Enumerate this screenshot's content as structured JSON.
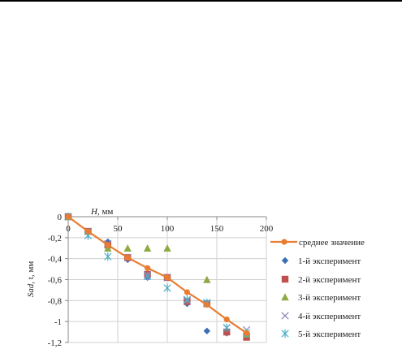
{
  "chart_data": {
    "type": "scatter",
    "xlabel_italic": "H",
    "xlabel_rest": ", мм",
    "ylabel_italic": "Sad",
    "ylabel_rest": ", t, мм",
    "xlim": [
      0,
      200
    ],
    "ylim": [
      -1.2,
      0
    ],
    "x_ticks": [
      0,
      50,
      100,
      150,
      200
    ],
    "x_tick_labels": [
      "0",
      "50",
      "100",
      "150",
      "200"
    ],
    "y_ticks": [
      0,
      -0.2,
      -0.4,
      -0.6,
      -0.8,
      -1,
      -1.2
    ],
    "y_tick_labels": [
      "0",
      "-0,2",
      "-0,4",
      "-0,6",
      "-0,8",
      "-1",
      "-1,2"
    ],
    "grid": true,
    "legend_position": "right",
    "series": [
      {
        "name": "среднее значение",
        "kind": "line",
        "color": "#e97c30",
        "x": [
          0,
          20,
          40,
          60,
          80,
          100,
          120,
          140,
          160,
          180
        ],
        "y": [
          0,
          -0.14,
          -0.27,
          -0.39,
          -0.49,
          -0.58,
          -0.72,
          -0.84,
          -0.98,
          -1.11
        ]
      },
      {
        "name": "1-й эксперимент",
        "kind": "diamond",
        "color": "#3a6fb5",
        "x": [
          0,
          20,
          40,
          60,
          80,
          100,
          120,
          140,
          160,
          180
        ],
        "y": [
          0,
          -0.14,
          -0.24,
          -0.41,
          -0.58,
          -0.58,
          -0.83,
          -1.09,
          -1.11,
          -1.11
        ]
      },
      {
        "name": "2-й эксперимент",
        "kind": "square",
        "color": "#c0504d",
        "x": [
          0,
          20,
          40,
          60,
          80,
          100,
          120,
          140,
          160,
          180
        ],
        "y": [
          0,
          -0.14,
          -0.27,
          -0.39,
          -0.55,
          -0.58,
          -0.81,
          -0.83,
          -1.1,
          -1.15
        ]
      },
      {
        "name": "3-й эксперимент",
        "kind": "triangle",
        "color": "#8faa45",
        "x": [
          0,
          20,
          40,
          60,
          80,
          100,
          140,
          180
        ],
        "y": [
          0,
          -0.14,
          -0.3,
          -0.3,
          -0.3,
          -0.3,
          -0.6,
          -1.12
        ]
      },
      {
        "name": "4-й эксперимент",
        "kind": "cross",
        "color": "#8f86b8",
        "x": [
          0,
          20,
          40,
          60,
          80,
          100,
          120,
          140,
          160,
          180
        ],
        "y": [
          0,
          -0.14,
          -0.26,
          -0.39,
          -0.55,
          -0.58,
          -0.8,
          -0.83,
          -1.06,
          -1.08
        ]
      },
      {
        "name": "5-й эксперимент",
        "kind": "asterisk",
        "color": "#4bacc6",
        "x": [
          0,
          20,
          40,
          80,
          100,
          120,
          140,
          160,
          180
        ],
        "y": [
          0,
          -0.18,
          -0.38,
          -0.57,
          -0.68,
          -0.79,
          -0.82,
          -1.06,
          -1.11
        ]
      }
    ]
  }
}
